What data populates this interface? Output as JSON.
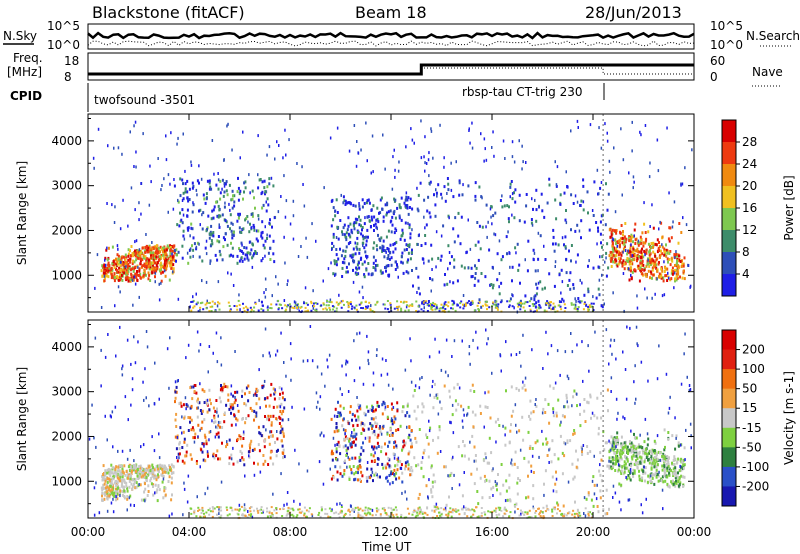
{
  "header": {
    "station": "Blackstone (fitACF)",
    "beam": "Beam 18",
    "date": "28/Jun/2013"
  },
  "top_panels": {
    "nsky_label": "N.Sky",
    "nsearch_label": "N.Search",
    "noise_ticks": [
      "10^5",
      "10^0"
    ],
    "freq_label_1": "Freq.",
    "freq_label_2": "[MHz]",
    "freq_ticks": [
      "18",
      "8"
    ],
    "nave_label": "Nave",
    "nave_ticks": [
      "60",
      "0"
    ],
    "cpid_label": "CPID",
    "cpid_mode_1": "twofsound -3501",
    "cpid_mode_2": "rbsp-tau CT-trig 230"
  },
  "chart_data": [
    {
      "type": "heatmap",
      "name": "power",
      "ylabel": "Slant Range [km]",
      "y_ticks": [
        "4000",
        "3000",
        "2000",
        "1000"
      ],
      "y_tick_values": [
        4000,
        3000,
        2000,
        1000
      ],
      "ylim": [
        180,
        4600
      ],
      "xlim": [
        0,
        24
      ],
      "colorbar": {
        "label": "Power [dB]",
        "ticks": [
          "28",
          "24",
          "20",
          "16",
          "12",
          "8",
          "4"
        ],
        "range": [
          0,
          32
        ],
        "colors": [
          "#1f1fe6",
          "#2e4fb8",
          "#3d8c6a",
          "#7ec850",
          "#f0c020",
          "#f08a10",
          "#ee3a10",
          "#d80000"
        ]
      },
      "scatter_regions": [
        {
          "x": [
            0.5,
            3.4
          ],
          "y": [
            900,
            1700
          ],
          "dominant": "red"
        },
        {
          "x": [
            3.4,
            7.4
          ],
          "y": [
            1300,
            3200
          ],
          "dominant": "blue-green"
        },
        {
          "x": [
            9.6,
            12.8
          ],
          "y": [
            1000,
            2800
          ],
          "dominant": "blue"
        },
        {
          "x": [
            12.8,
            20.6
          ],
          "y": [
            300,
            3200
          ],
          "dominant": "blue"
        },
        {
          "x": [
            20.6,
            23.6
          ],
          "y": [
            900,
            2200
          ],
          "dominant": "red"
        }
      ]
    },
    {
      "type": "heatmap",
      "name": "velocity",
      "ylabel": "Slant Range [km]",
      "y_ticks": [
        "4000",
        "3000",
        "2000",
        "1000"
      ],
      "y_tick_values": [
        4000,
        3000,
        2000,
        1000
      ],
      "ylim": [
        180,
        4600
      ],
      "xlim": [
        0,
        24
      ],
      "colorbar": {
        "label": "Velocity [m s-1]",
        "ticks": [
          "200",
          "100",
          "50",
          "15",
          "-15",
          "-50",
          "-100",
          "-200"
        ],
        "colors": [
          "#1818b0",
          "#2a50c8",
          "#2e8040",
          "#7ed040",
          "#c8c8c8",
          "#f0a040",
          "#f07010",
          "#e02010",
          "#d80000"
        ]
      },
      "xlabel": "Time UT",
      "x_ticks": [
        "00:00",
        "04:00",
        "08:00",
        "12:00",
        "16:00",
        "20:00",
        "00:00"
      ],
      "x_tick_values": [
        0,
        4,
        8,
        12,
        16,
        20,
        24
      ],
      "scatter_regions": [
        {
          "x": [
            0.5,
            3.4
          ],
          "y": [
            600,
            1400
          ],
          "dominant": "grey"
        },
        {
          "x": [
            3.4,
            7.8
          ],
          "y": [
            1400,
            3200
          ],
          "dominant": "orange"
        },
        {
          "x": [
            9.6,
            12.8
          ],
          "y": [
            1000,
            2800
          ],
          "dominant": "mixed"
        },
        {
          "x": [
            12.8,
            20.6
          ],
          "y": [
            300,
            3200
          ],
          "dominant": "grey"
        },
        {
          "x": [
            20.6,
            23.6
          ],
          "y": [
            900,
            2200
          ],
          "dominant": "green-grey"
        }
      ]
    }
  ]
}
